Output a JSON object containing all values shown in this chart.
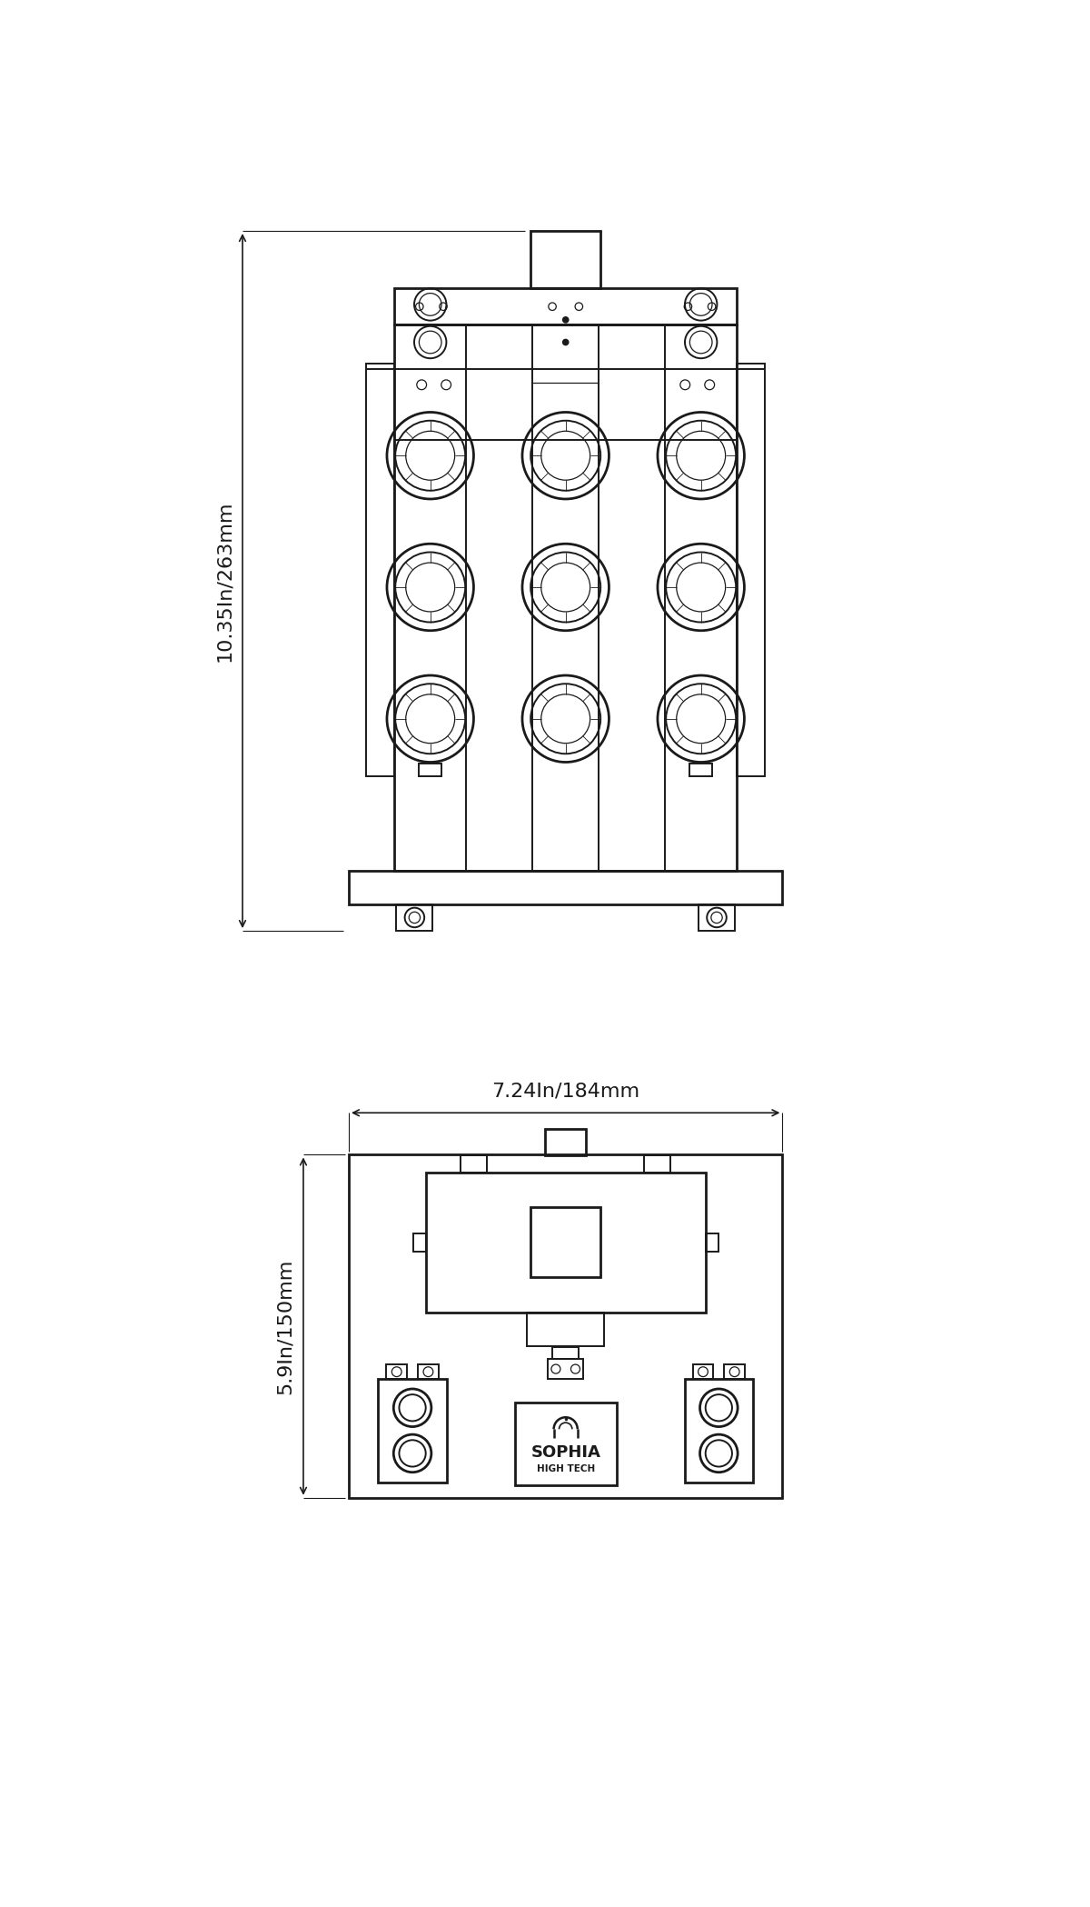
{
  "bg_color": "#ffffff",
  "line_color": "#1a1a1a",
  "lw_thin": 0.9,
  "lw_med": 1.4,
  "lw_thick": 2.0,
  "dim1_text": "10.35In/263mm",
  "dim2_text": "7.24In/184mm",
  "dim3_text": "5.9In/150mm",
  "sophia_text": "SOPHIA",
  "high_tech_text": "HIGH TECH"
}
